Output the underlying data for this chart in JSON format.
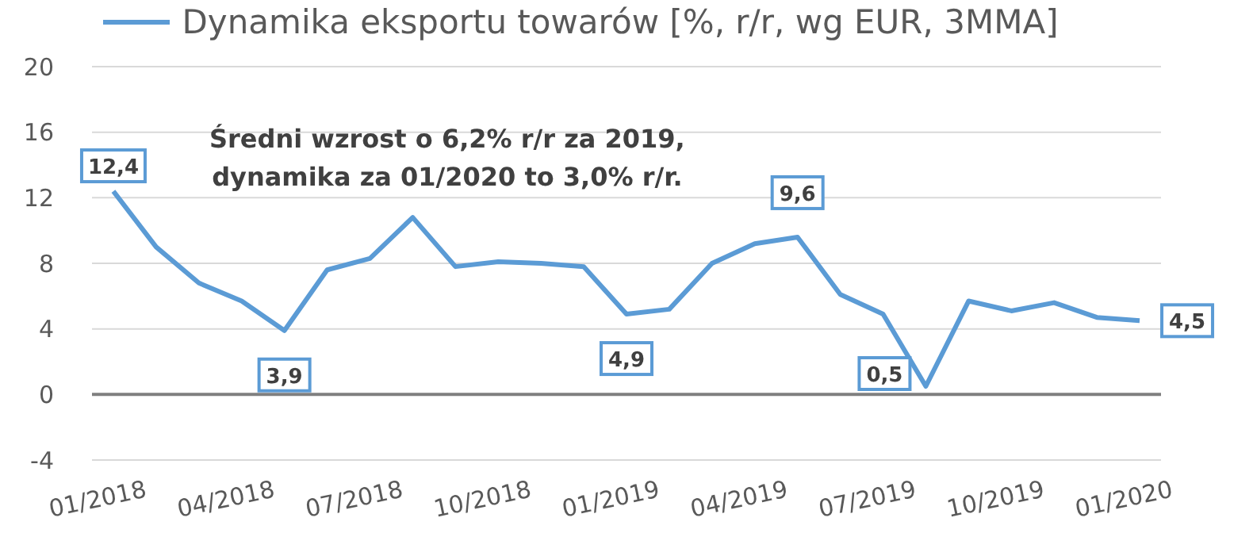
{
  "chart_data": {
    "type": "line",
    "categories": [
      "01/2018",
      null,
      null,
      "04/2018",
      null,
      null,
      "07/2018",
      null,
      null,
      "10/2018",
      null,
      null,
      "01/2019",
      null,
      null,
      "04/2019",
      null,
      null,
      "07/2019",
      null,
      null,
      "10/2019",
      null,
      null,
      "01/2020"
    ],
    "series": [
      {
        "name": "Dynamika eksportu towarów [%, r/r, wg EUR, 3MMA]",
        "color": "#5b9bd5",
        "values": [
          12.4,
          9.0,
          6.8,
          5.7,
          3.9,
          7.6,
          8.3,
          10.8,
          7.8,
          8.1,
          8.0,
          7.8,
          4.9,
          5.2,
          8.0,
          9.2,
          9.6,
          6.1,
          4.9,
          0.5,
          5.7,
          5.1,
          5.6,
          4.7,
          4.5
        ],
        "value_labels": [
          "12,4",
          null,
          null,
          null,
          "3,9",
          null,
          null,
          null,
          null,
          null,
          null,
          null,
          "4,9",
          null,
          null,
          null,
          "9,6",
          null,
          null,
          "0,5",
          null,
          null,
          null,
          null,
          "4,5"
        ]
      }
    ],
    "ylim": [
      -4,
      20
    ],
    "yticks": [
      -4,
      0,
      4,
      8,
      12,
      16,
      20
    ],
    "grid": "y",
    "legend": "top",
    "marker": "none",
    "line_style": "solid",
    "annotations": [
      "Średni wzrost o 6,2% r/r za 2019,\ndynamika za 01/2020 to 3,0% r/r."
    ]
  }
}
